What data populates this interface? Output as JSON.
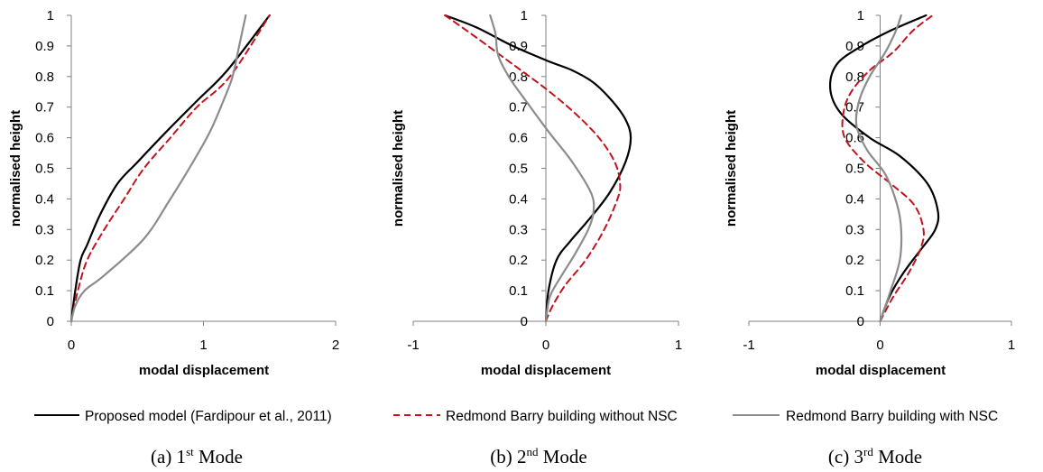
{
  "legend": {
    "items": [
      {
        "label": "Proposed model (Fardipour et al., 2011)",
        "color": "#000000",
        "dash": "solid"
      },
      {
        "label": "Redmond Barry building without NSC",
        "color": "#c0141c",
        "dash": "dashed"
      },
      {
        "label": "Redmond Barry building with NSC",
        "color": "#8c8c8c",
        "dash": "solid"
      }
    ]
  },
  "captions": [
    {
      "prefix": "(a) 1",
      "sup": "st",
      "suffix": " Mode"
    },
    {
      "prefix": "(b) 2",
      "sup": "nd",
      "suffix": " Mode"
    },
    {
      "prefix": "(c) 3",
      "sup": "rd",
      "suffix": " Mode"
    }
  ],
  "chart_data": [
    {
      "type": "line",
      "xlabel": "modal displacement",
      "ylabel": "normalised height",
      "xlim": [
        0,
        2
      ],
      "ylim": [
        0,
        1
      ],
      "xticks": [
        "0",
        "1",
        "2"
      ],
      "yticks": [
        "0",
        "0.1",
        "0.2",
        "0.3",
        "0.4",
        "0.5",
        "0.6",
        "0.7",
        "0.8",
        "0.9",
        "1"
      ],
      "grid": false,
      "series": [
        {
          "name": "Proposed model (Fardipour et al., 2011)",
          "x": [
            0,
            0.03,
            0.07,
            0.12,
            0.22,
            0.35,
            0.5,
            0.72,
            0.95,
            1.18,
            1.5
          ],
          "y": [
            0,
            0.1,
            0.2,
            0.25,
            0.35,
            0.45,
            0.52,
            0.62,
            0.72,
            0.82,
            1.0
          ]
        },
        {
          "name": "Redmond Barry building without NSC",
          "x": [
            0,
            0.05,
            0.12,
            0.25,
            0.4,
            0.55,
            0.75,
            0.95,
            1.2,
            1.5
          ],
          "y": [
            0,
            0.1,
            0.2,
            0.3,
            0.4,
            0.5,
            0.6,
            0.7,
            0.8,
            1.0
          ]
        },
        {
          "name": "Redmond Barry building with NSC",
          "x": [
            0,
            0.03,
            0.1,
            0.25,
            0.55,
            0.75,
            0.92,
            1.05,
            1.15,
            1.22,
            1.27,
            1.32
          ],
          "y": [
            0,
            0.05,
            0.1,
            0.15,
            0.27,
            0.4,
            0.52,
            0.62,
            0.72,
            0.8,
            0.9,
            1.0
          ]
        }
      ]
    },
    {
      "type": "line",
      "xlabel": "modal displacement",
      "ylabel": "normalised height",
      "xlim": [
        -1,
        1
      ],
      "ylim": [
        0,
        1
      ],
      "xticks": [
        "-1",
        "0",
        "1"
      ],
      "yticks": [
        "0",
        "0.1",
        "0.2",
        "0.3",
        "0.4",
        "0.5",
        "0.6",
        "0.7",
        "0.8",
        "0.9",
        "1"
      ],
      "grid": false,
      "series": [
        {
          "name": "Proposed model (Fardipour et al., 2011)",
          "x": [
            0,
            0.02,
            0.08,
            0.18,
            0.32,
            0.48,
            0.6,
            0.64,
            0.6,
            0.5,
            0.36,
            0.2,
            0.02,
            -0.25,
            -0.52,
            -0.76
          ],
          "y": [
            0,
            0.1,
            0.2,
            0.26,
            0.33,
            0.42,
            0.52,
            0.6,
            0.66,
            0.72,
            0.78,
            0.82,
            0.85,
            0.9,
            0.96,
            1.0
          ]
        },
        {
          "name": "Redmond Barry building without NSC",
          "x": [
            0,
            0.05,
            0.15,
            0.3,
            0.44,
            0.54,
            0.56,
            0.52,
            0.4,
            0.22,
            0.0,
            -0.25,
            -0.5,
            -0.76
          ],
          "y": [
            0,
            0.05,
            0.12,
            0.2,
            0.3,
            0.4,
            0.45,
            0.52,
            0.6,
            0.68,
            0.76,
            0.84,
            0.92,
            1.0
          ]
        },
        {
          "name": "Redmond Barry building with NSC",
          "x": [
            0,
            0.03,
            0.12,
            0.22,
            0.32,
            0.36,
            0.34,
            0.2,
            0.02,
            -0.15,
            -0.28,
            -0.36,
            -0.38,
            -0.42
          ],
          "y": [
            0,
            0.08,
            0.15,
            0.22,
            0.3,
            0.36,
            0.42,
            0.52,
            0.62,
            0.72,
            0.8,
            0.87,
            0.94,
            1.0
          ]
        }
      ]
    },
    {
      "type": "line",
      "xlabel": "modal displacement",
      "ylabel": "normalised height",
      "xlim": [
        -1,
        1
      ],
      "ylim": [
        0,
        1
      ],
      "xticks": [
        "-1",
        "0",
        "1"
      ],
      "yticks": [
        "0",
        "0.1",
        "0.2",
        "0.3",
        "0.4",
        "0.5",
        "0.6",
        "0.7",
        "0.8",
        "0.9",
        "1"
      ],
      "grid": false,
      "series": [
        {
          "name": "Proposed model (Fardipour et al., 2011)",
          "x": [
            0,
            0.07,
            0.18,
            0.32,
            0.42,
            0.44,
            0.36,
            0.15,
            -0.08,
            -0.3,
            -0.38,
            -0.33,
            -0.14,
            0.08,
            0.35
          ],
          "y": [
            0,
            0.08,
            0.16,
            0.24,
            0.3,
            0.36,
            0.45,
            0.54,
            0.6,
            0.68,
            0.76,
            0.84,
            0.9,
            0.95,
            1.0
          ]
        },
        {
          "name": "Redmond Barry building without NSC",
          "x": [
            0,
            0.1,
            0.22,
            0.31,
            0.33,
            0.26,
            0.08,
            -0.12,
            -0.27,
            -0.28,
            -0.22,
            -0.08,
            0.1,
            0.25,
            0.4
          ],
          "y": [
            0,
            0.08,
            0.16,
            0.24,
            0.3,
            0.38,
            0.45,
            0.52,
            0.6,
            0.68,
            0.75,
            0.82,
            0.88,
            0.95,
            1.0
          ]
        },
        {
          "name": "Redmond Barry building with NSC",
          "x": [
            0,
            0.08,
            0.15,
            0.16,
            0.13,
            0.04,
            -0.1,
            -0.18,
            -0.16,
            -0.08,
            0.04,
            0.12,
            0.16
          ],
          "y": [
            0,
            0.1,
            0.2,
            0.3,
            0.38,
            0.48,
            0.56,
            0.64,
            0.72,
            0.8,
            0.88,
            0.95,
            1.0
          ]
        }
      ]
    }
  ]
}
